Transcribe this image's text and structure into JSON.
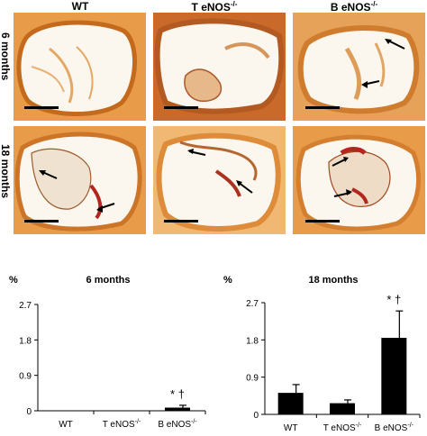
{
  "columns": [
    {
      "label": "WT",
      "sup": ""
    },
    {
      "label": "T eNOS",
      "sup": "-/-"
    },
    {
      "label": "B eNOS",
      "sup": "-/-"
    }
  ],
  "rows": [
    "6 months",
    "18 months"
  ],
  "colors": {
    "tissue": "#d9822b",
    "tissue_light": "#efbb7a",
    "background": "#f7efe3",
    "calcification": "#b3261e",
    "bar": "#000000"
  },
  "chart_data": [
    {
      "type": "bar",
      "title": "6 months",
      "ylabel": "%",
      "categories": [
        "WT",
        "T eNOS-/-",
        "B eNOS-/-"
      ],
      "values": [
        0.01,
        0.01,
        0.08
      ],
      "errors": [
        0.0,
        0.0,
        0.06
      ],
      "ylim": [
        0,
        2.7
      ],
      "yticks": [
        "0",
        "0.9",
        "1.8",
        "2.7"
      ],
      "annotation": "* †",
      "annotation_category": "B eNOS-/-"
    },
    {
      "type": "bar",
      "title": "18 months",
      "ylabel": "%",
      "categories": [
        "WT",
        "T eNOS-/-",
        "B eNOS-/-"
      ],
      "values": [
        0.52,
        0.27,
        1.85
      ],
      "errors": [
        0.2,
        0.08,
        0.65
      ],
      "ylim": [
        0,
        2.7
      ],
      "yticks": [
        "0",
        "0.9",
        "1.8",
        "2.7"
      ],
      "annotation": "* †",
      "annotation_category": "B eNOS-/-"
    }
  ]
}
